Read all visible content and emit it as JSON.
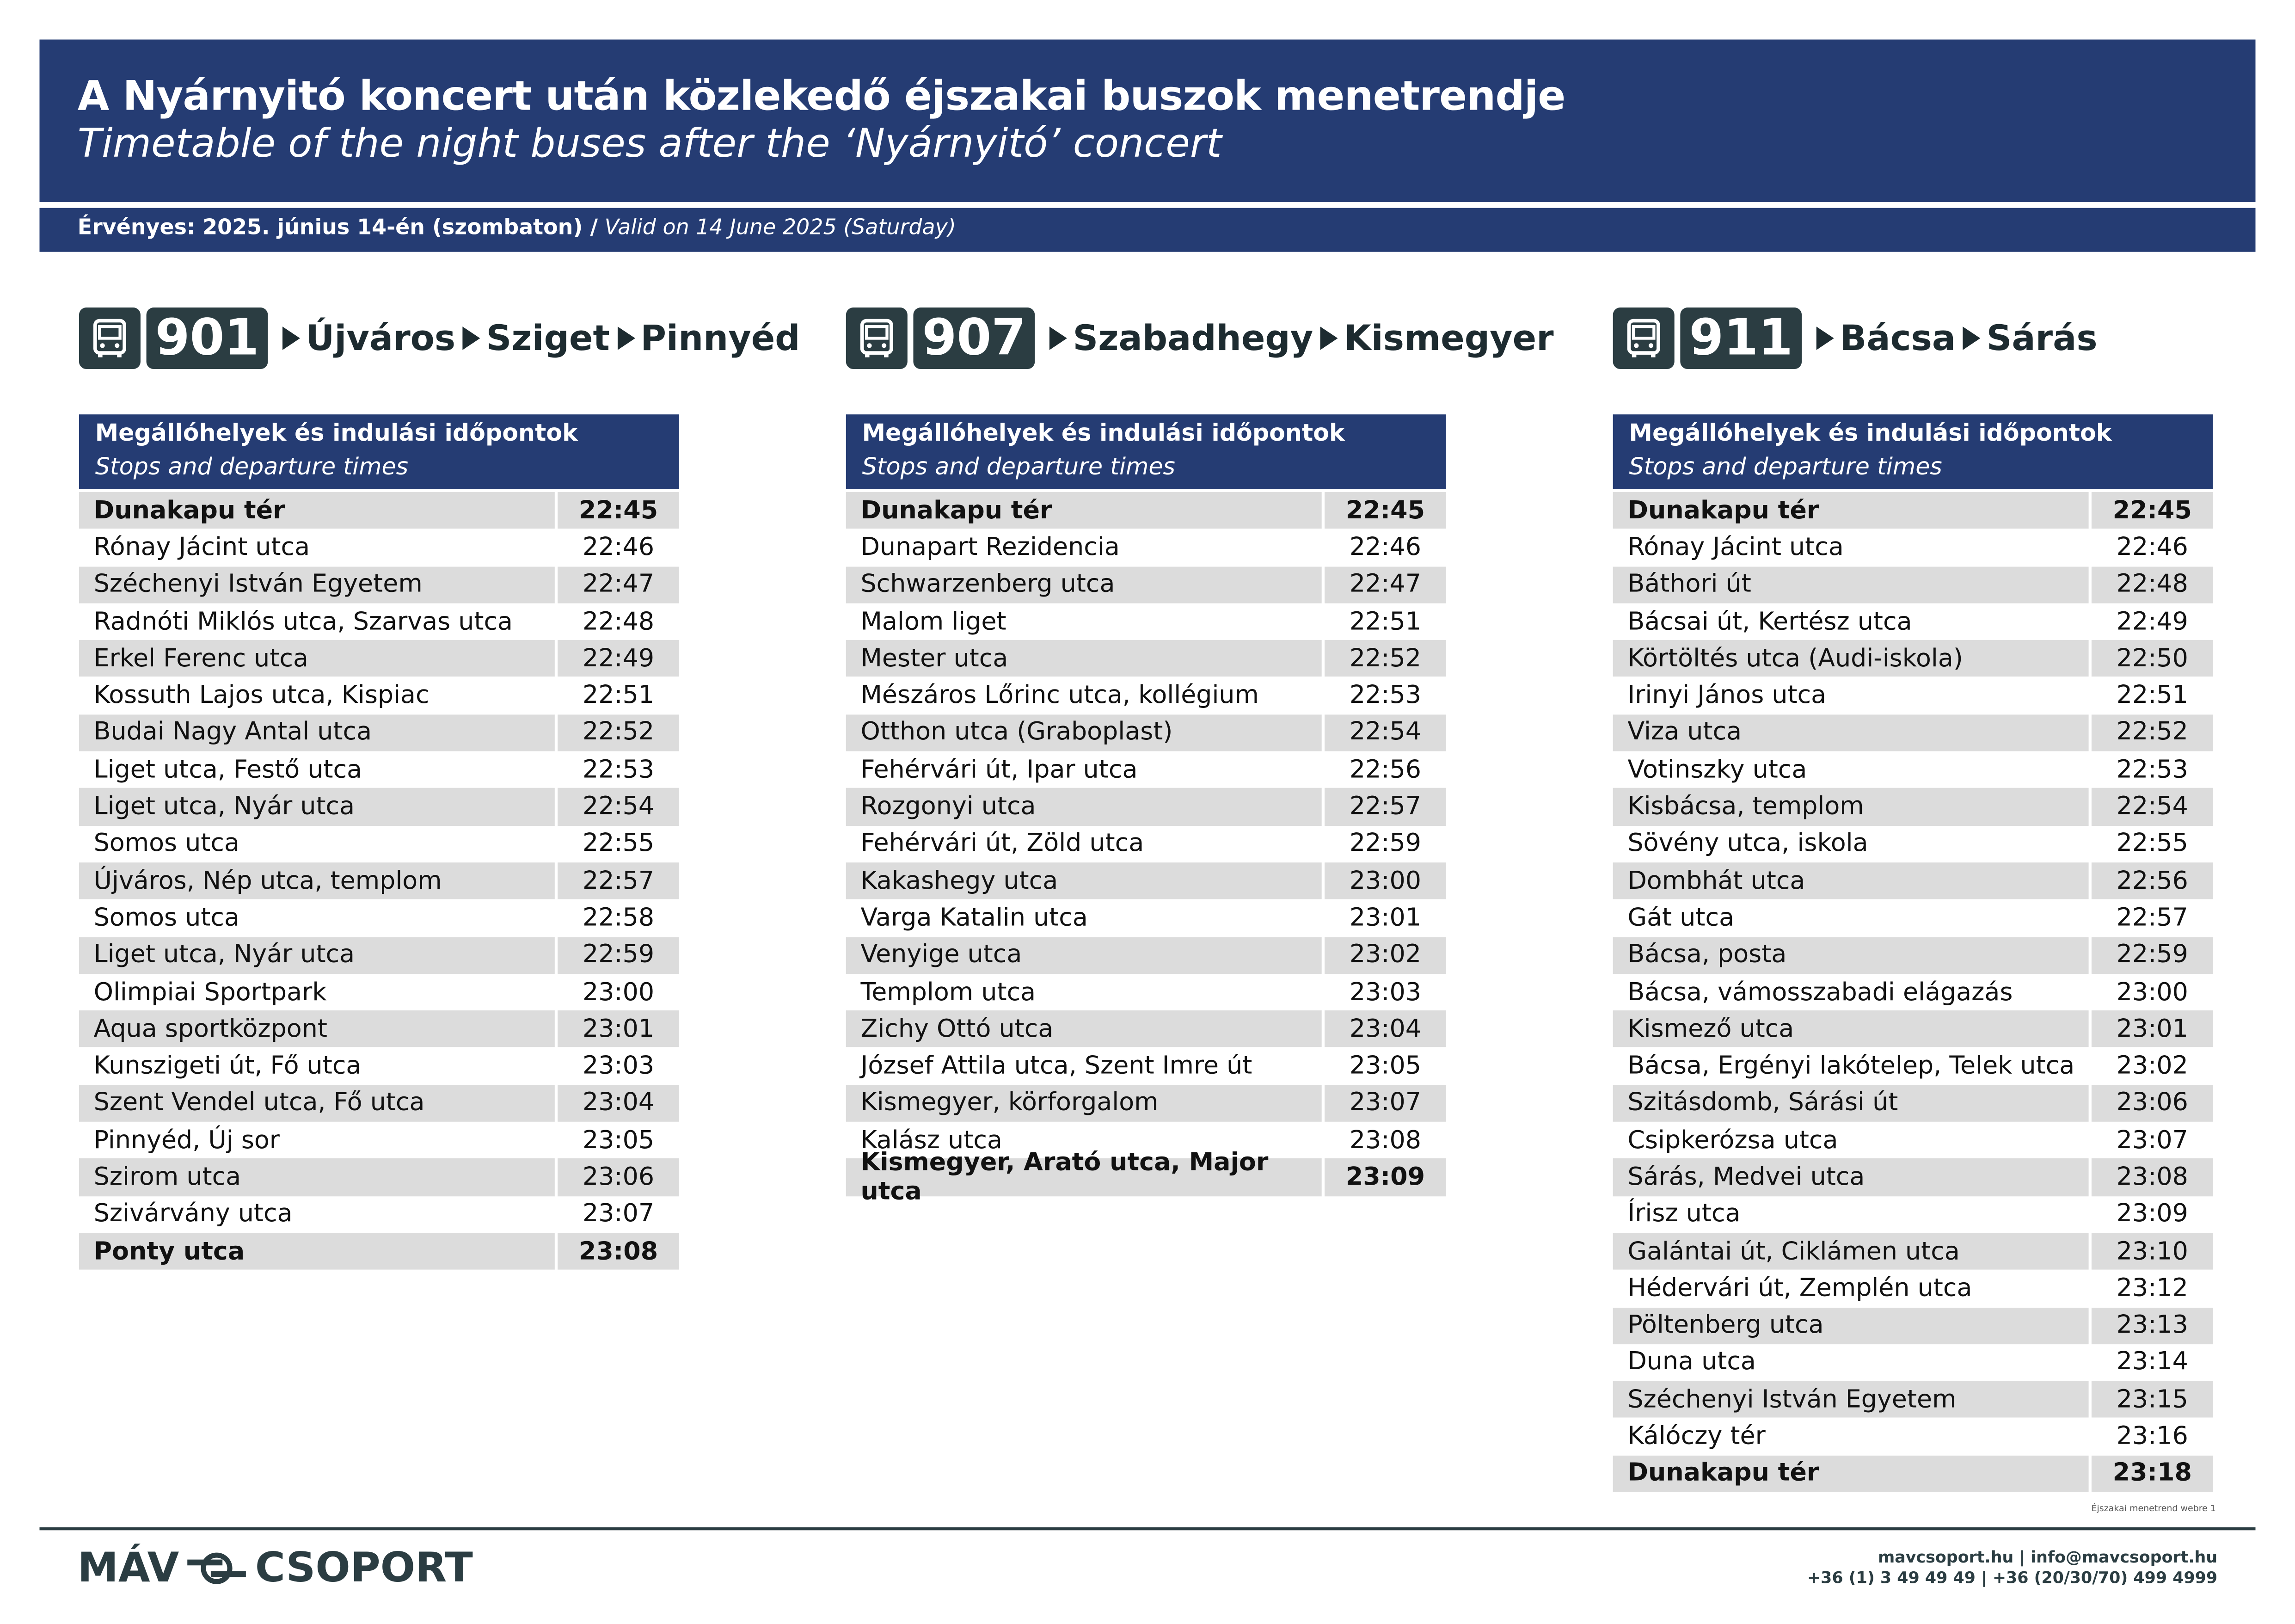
{
  "header": {
    "title": "A Nyárnyitó koncert után közlekedő éjszakai buszok menetrendje",
    "subtitle": "Timetable of the night buses after the ‘Nyárnyitó’ concert",
    "valid_hu": "Érvényes: 2025. június 14-én (szombaton) /",
    "valid_en": "Valid on 14 June 2025 (Saturday)"
  },
  "table_header": {
    "hu": "Megállóhelyek és indulási időpontok",
    "en": "Stops and departure times"
  },
  "routes": [
    {
      "number": "901",
      "destinations": [
        "Újváros",
        "Sziget",
        "Pinnyéd"
      ],
      "rows": [
        [
          "Dunakapu tér",
          "22:45"
        ],
        [
          "Rónay Jácint utca",
          "22:46"
        ],
        [
          "Széchenyi István Egyetem",
          "22:47"
        ],
        [
          "Radnóti Miklós utca, Szarvas utca",
          "22:48"
        ],
        [
          "Erkel Ferenc utca",
          "22:49"
        ],
        [
          "Kossuth Lajos utca, Kispiac",
          "22:51"
        ],
        [
          "Budai Nagy Antal utca",
          "22:52"
        ],
        [
          "Liget utca, Festő utca",
          "22:53"
        ],
        [
          "Liget utca, Nyár utca",
          "22:54"
        ],
        [
          "Somos utca",
          "22:55"
        ],
        [
          "Újváros, Nép utca, templom",
          "22:57"
        ],
        [
          "Somos utca",
          "22:58"
        ],
        [
          "Liget utca, Nyár utca",
          "22:59"
        ],
        [
          "Olimpiai Sportpark",
          "23:00"
        ],
        [
          "Aqua sportközpont",
          "23:01"
        ],
        [
          "Kunszigeti út, Fő utca",
          "23:03"
        ],
        [
          "Szent Vendel utca, Fő utca",
          "23:04"
        ],
        [
          "Pinnyéd, Új sor",
          "23:05"
        ],
        [
          "Szirom utca",
          "23:06"
        ],
        [
          "Szivárvány utca",
          "23:07"
        ],
        [
          "Ponty utca",
          "23:08"
        ]
      ]
    },
    {
      "number": "907",
      "destinations": [
        "Szabadhegy",
        "Kismegyer"
      ],
      "rows": [
        [
          "Dunakapu tér",
          "22:45"
        ],
        [
          "Dunapart Rezidencia",
          "22:46"
        ],
        [
          "Schwarzenberg utca",
          "22:47"
        ],
        [
          "Malom liget",
          "22:51"
        ],
        [
          "Mester utca",
          "22:52"
        ],
        [
          "Mészáros Lőrinc utca, kollégium",
          "22:53"
        ],
        [
          "Otthon utca (Graboplast)",
          "22:54"
        ],
        [
          "Fehérvári út, Ipar utca",
          "22:56"
        ],
        [
          "Rozgonyi utca",
          "22:57"
        ],
        [
          "Fehérvári út, Zöld utca",
          "22:59"
        ],
        [
          "Kakashegy utca",
          "23:00"
        ],
        [
          "Varga Katalin utca",
          "23:01"
        ],
        [
          "Venyige utca",
          "23:02"
        ],
        [
          "Templom utca",
          "23:03"
        ],
        [
          "Zichy Ottó utca",
          "23:04"
        ],
        [
          "József Attila utca, Szent Imre út",
          "23:05"
        ],
        [
          "Kismegyer, körforgalom",
          "23:07"
        ],
        [
          "Kalász utca",
          "23:08"
        ],
        [
          "Kismegyer, Arató utca, Major utca",
          "23:09"
        ]
      ]
    },
    {
      "number": "911",
      "destinations": [
        "Bácsa",
        "Sárás"
      ],
      "rows": [
        [
          "Dunakapu tér",
          "22:45"
        ],
        [
          "Rónay Jácint utca",
          "22:46"
        ],
        [
          "Báthori út",
          "22:48"
        ],
        [
          "Bácsai út, Kertész utca",
          "22:49"
        ],
        [
          "Körtöltés utca (Audi-iskola)",
          "22:50"
        ],
        [
          "Irinyi János utca",
          "22:51"
        ],
        [
          "Viza utca",
          "22:52"
        ],
        [
          "Votinszky utca",
          "22:53"
        ],
        [
          "Kisbácsa, templom",
          "22:54"
        ],
        [
          "Sövény utca, iskola",
          "22:55"
        ],
        [
          "Dombhát utca",
          "22:56"
        ],
        [
          "Gát utca",
          "22:57"
        ],
        [
          "Bácsa, posta",
          "22:59"
        ],
        [
          "Bácsa, vámosszabadi elágazás",
          "23:00"
        ],
        [
          "Kismező utca",
          "23:01"
        ],
        [
          "Bácsa, Ergényi lakótelep, Telek utca",
          "23:02"
        ],
        [
          "Szitásdomb, Sárási út",
          "23:06"
        ],
        [
          "Csipkerózsa utca",
          "23:07"
        ],
        [
          "Sárás, Medvei utca",
          "23:08"
        ],
        [
          "Írisz utca",
          "23:09"
        ],
        [
          "Galántai út, Ciklámen utca",
          "23:10"
        ],
        [
          "Hédervári út, Zemplén utca",
          "23:12"
        ],
        [
          "Pöltenberg utca",
          "23:13"
        ],
        [
          "Duna utca",
          "23:14"
        ],
        [
          "Széchenyi István Egyetem",
          "23:15"
        ],
        [
          "Kálóczy tér",
          "23:16"
        ],
        [
          "Dunakapu tér",
          "23:18"
        ]
      ]
    }
  ],
  "footer": {
    "note": "Éjszakai menetrend webre 1",
    "logo_left": "MÁV",
    "logo_right": "CSOPORT",
    "contact_1": "mavcsoport.hu | info@mavcsoport.hu",
    "contact_2": "+36 (1) 3 49 49 49 | +36 (20/30/70) 499 4999"
  }
}
